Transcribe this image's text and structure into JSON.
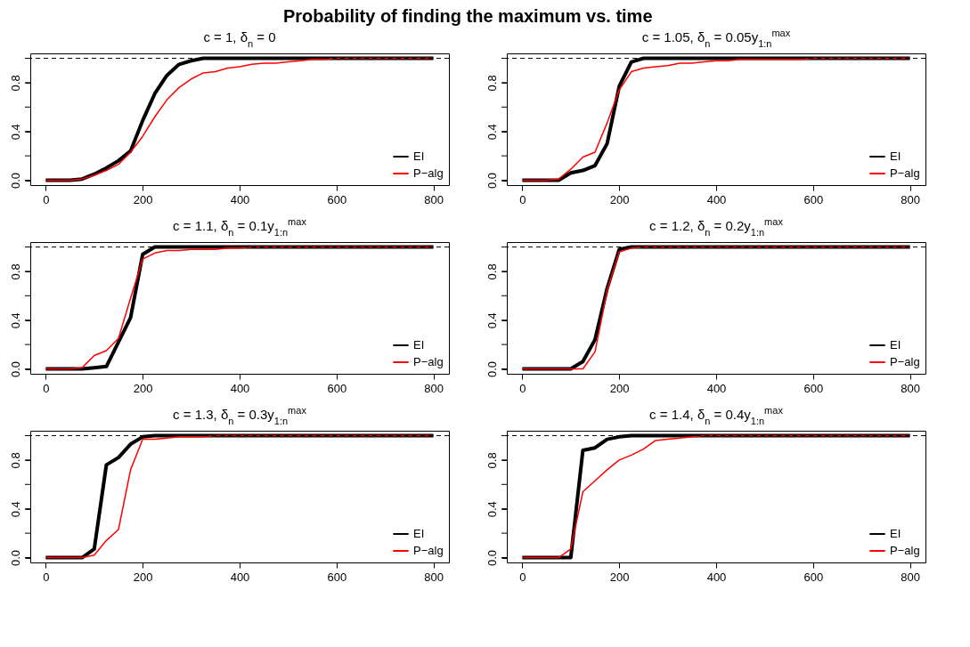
{
  "chart_data": [
    {
      "type": "line",
      "title": "c = 1,  δ$_{n}$ = 0",
      "annotations": [
        "Probability of finding the maximum vs. time"
      ],
      "x": [
        0,
        25,
        50,
        75,
        100,
        125,
        150,
        175,
        200,
        225,
        250,
        275,
        300,
        325,
        350,
        375,
        400,
        425,
        450,
        475,
        500,
        525,
        550,
        575,
        600,
        700,
        800
      ],
      "series": [
        {
          "name": "EI",
          "color": "#000000",
          "values": [
            0,
            0,
            0,
            0.01,
            0.05,
            0.1,
            0.16,
            0.24,
            0.49,
            0.71,
            0.86,
            0.95,
            0.98,
            1,
            1,
            1,
            1,
            1,
            1,
            1,
            1,
            1,
            1,
            1,
            1,
            1,
            1
          ]
        },
        {
          "name": "P−alg",
          "color": "#ff0000",
          "values": [
            0,
            0,
            0,
            0.01,
            0.04,
            0.08,
            0.13,
            0.23,
            0.36,
            0.52,
            0.66,
            0.76,
            0.83,
            0.88,
            0.89,
            0.92,
            0.93,
            0.95,
            0.96,
            0.96,
            0.97,
            0.98,
            0.99,
            0.99,
            1,
            1,
            1
          ]
        }
      ],
      "xlim": [
        -32,
        832
      ],
      "ylim": [
        -0.04,
        1.04
      ],
      "xticks": [
        0,
        200,
        400,
        600,
        800
      ],
      "yticks": [
        {
          "value": 0,
          "label": "0.0"
        },
        {
          "value": 0.2,
          "label": null
        },
        {
          "value": 0.4,
          "label": "0.4"
        },
        {
          "value": 0.6,
          "label": null
        },
        {
          "value": 0.8,
          "label": "0.8"
        },
        {
          "value": 1,
          "label": null
        }
      ],
      "ref_lines": [
        {
          "axis": "y",
          "value": 1,
          "line_style": "dashed",
          "color": "#000000"
        }
      ],
      "legend": "bottom right",
      "grid": false,
      "line_style": "solid"
    },
    {
      "type": "line",
      "title": "c = 1.05, δ$_{n}$ = 0.05y$_{1:n}$$^{max}$",
      "x": [
        0,
        25,
        50,
        75,
        100,
        125,
        150,
        175,
        200,
        225,
        250,
        275,
        300,
        325,
        350,
        375,
        400,
        425,
        450,
        475,
        500,
        525,
        550,
        575,
        600,
        700,
        800
      ],
      "series": [
        {
          "name": "EI",
          "color": "#000000",
          "values": [
            0,
            0,
            0,
            0,
            0.06,
            0.08,
            0.12,
            0.3,
            0.77,
            0.97,
            1,
            1,
            1,
            1,
            1,
            1,
            1,
            1,
            1,
            1,
            1,
            1,
            1,
            1,
            1,
            1,
            1
          ]
        },
        {
          "name": "P−alg",
          "color": "#ff0000",
          "values": [
            0,
            0,
            0,
            0.01,
            0.09,
            0.19,
            0.23,
            0.47,
            0.74,
            0.89,
            0.92,
            0.93,
            0.94,
            0.96,
            0.96,
            0.97,
            0.98,
            0.98,
            0.99,
            0.99,
            0.99,
            0.99,
            0.99,
            0.99,
            1,
            1,
            1
          ]
        }
      ],
      "xlim": [
        -32,
        832
      ],
      "ylim": [
        -0.04,
        1.04
      ],
      "xticks": [
        0,
        200,
        400,
        600,
        800
      ],
      "yticks": [
        {
          "value": 0,
          "label": "0.0"
        },
        {
          "value": 0.2,
          "label": null
        },
        {
          "value": 0.4,
          "label": "0.4"
        },
        {
          "value": 0.6,
          "label": null
        },
        {
          "value": 0.8,
          "label": "0.8"
        },
        {
          "value": 1,
          "label": null
        }
      ],
      "ref_lines": [
        {
          "axis": "y",
          "value": 1,
          "line_style": "dashed",
          "color": "#000000"
        }
      ],
      "legend": "bottom right",
      "grid": false,
      "line_style": "solid"
    },
    {
      "type": "line",
      "title": "c = 1.1, δ$_{n}$ = 0.1y$_{1:n}$$^{max}$",
      "x": [
        0,
        25,
        50,
        75,
        100,
        125,
        150,
        175,
        200,
        225,
        250,
        275,
        300,
        325,
        350,
        375,
        400,
        425,
        450,
        475,
        500,
        525,
        550,
        575,
        600,
        700,
        800
      ],
      "series": [
        {
          "name": "EI",
          "color": "#000000",
          "values": [
            0,
            0,
            0,
            0,
            0.01,
            0.02,
            0.22,
            0.42,
            0.94,
            1,
            1,
            1,
            1,
            1,
            1,
            1,
            1,
            1,
            1,
            1,
            1,
            1,
            1,
            1,
            1,
            1,
            1
          ]
        },
        {
          "name": "P−alg",
          "color": "#ff0000",
          "values": [
            0,
            0,
            0,
            0.01,
            0.11,
            0.15,
            0.25,
            0.58,
            0.9,
            0.95,
            0.97,
            0.97,
            0.98,
            0.98,
            0.98,
            0.99,
            0.99,
            1,
            1,
            1,
            1,
            1,
            1,
            1,
            1,
            1,
            1
          ]
        }
      ],
      "xlim": [
        -32,
        832
      ],
      "ylim": [
        -0.04,
        1.04
      ],
      "xticks": [
        0,
        200,
        400,
        600,
        800
      ],
      "yticks": [
        {
          "value": 0,
          "label": "0.0"
        },
        {
          "value": 0.2,
          "label": null
        },
        {
          "value": 0.4,
          "label": "0.4"
        },
        {
          "value": 0.6,
          "label": null
        },
        {
          "value": 0.8,
          "label": "0.8"
        },
        {
          "value": 1,
          "label": null
        }
      ],
      "ref_lines": [
        {
          "axis": "y",
          "value": 1,
          "line_style": "dashed",
          "color": "#000000"
        }
      ],
      "legend": "bottom right",
      "grid": false,
      "line_style": "solid"
    },
    {
      "type": "line",
      "title": "c = 1.2, δ$_{n}$ = 0.2y$_{1:n}$$^{max}$",
      "x": [
        0,
        25,
        50,
        75,
        100,
        125,
        150,
        175,
        200,
        225,
        250,
        275,
        300,
        325,
        350,
        375,
        400,
        425,
        450,
        475,
        500,
        525,
        550,
        575,
        600,
        700,
        800
      ],
      "series": [
        {
          "name": "EI",
          "color": "#000000",
          "values": [
            0,
            0,
            0,
            0,
            0,
            0.06,
            0.24,
            0.66,
            0.98,
            1,
            1,
            1,
            1,
            1,
            1,
            1,
            1,
            1,
            1,
            1,
            1,
            1,
            1,
            1,
            1,
            1,
            1
          ]
        },
        {
          "name": "P−alg",
          "color": "#ff0000",
          "values": [
            0,
            0,
            0,
            0,
            0,
            0,
            0.14,
            0.64,
            0.96,
            0.99,
            1,
            1,
            1,
            1,
            1,
            1,
            1,
            1,
            1,
            1,
            1,
            1,
            1,
            1,
            1,
            1,
            1
          ]
        }
      ],
      "xlim": [
        -32,
        832
      ],
      "ylim": [
        -0.04,
        1.04
      ],
      "xticks": [
        0,
        200,
        400,
        600,
        800
      ],
      "yticks": [
        {
          "value": 0,
          "label": "0.0"
        },
        {
          "value": 0.2,
          "label": null
        },
        {
          "value": 0.4,
          "label": "0.4"
        },
        {
          "value": 0.6,
          "label": null
        },
        {
          "value": 0.8,
          "label": "0.8"
        },
        {
          "value": 1,
          "label": null
        }
      ],
      "ref_lines": [
        {
          "axis": "y",
          "value": 1,
          "line_style": "dashed",
          "color": "#000000"
        }
      ],
      "legend": "bottom right",
      "grid": false,
      "line_style": "solid"
    },
    {
      "type": "line",
      "title": "c = 1.3, δ$_{n}$ = 0.3y$_{1:n}$$^{max}$",
      "x": [
        0,
        25,
        50,
        75,
        100,
        125,
        150,
        175,
        200,
        225,
        250,
        275,
        300,
        325,
        350,
        375,
        400,
        425,
        450,
        475,
        500,
        525,
        550,
        575,
        600,
        700,
        800
      ],
      "series": [
        {
          "name": "EI",
          "color": "#000000",
          "values": [
            0,
            0,
            0,
            0,
            0.07,
            0.76,
            0.82,
            0.93,
            0.99,
            1,
            1,
            1,
            1,
            1,
            1,
            1,
            1,
            1,
            1,
            1,
            1,
            1,
            1,
            1,
            1,
            1,
            1
          ]
        },
        {
          "name": "P−alg",
          "color": "#ff0000",
          "values": [
            0,
            0,
            0,
            0,
            0.02,
            0.14,
            0.23,
            0.72,
            0.97,
            0.97,
            0.98,
            0.99,
            0.99,
            0.99,
            1,
            1,
            1,
            1,
            1,
            1,
            1,
            1,
            1,
            1,
            1,
            1,
            1
          ]
        }
      ],
      "xlim": [
        -32,
        832
      ],
      "ylim": [
        -0.04,
        1.04
      ],
      "xticks": [
        0,
        200,
        400,
        600,
        800
      ],
      "yticks": [
        {
          "value": 0,
          "label": "0.0"
        },
        {
          "value": 0.2,
          "label": null
        },
        {
          "value": 0.4,
          "label": "0.4"
        },
        {
          "value": 0.6,
          "label": null
        },
        {
          "value": 0.8,
          "label": "0.8"
        },
        {
          "value": 1,
          "label": null
        }
      ],
      "ref_lines": [
        {
          "axis": "y",
          "value": 1,
          "line_style": "dashed",
          "color": "#000000"
        }
      ],
      "legend": "bottom right",
      "grid": false,
      "line_style": "solid"
    },
    {
      "type": "line",
      "title": "c = 1.4, δ$_{n}$ = 0.4y$_{1:n}$$^{max}$",
      "x": [
        0,
        25,
        50,
        75,
        100,
        125,
        150,
        175,
        200,
        225,
        250,
        275,
        300,
        325,
        350,
        375,
        400,
        425,
        450,
        475,
        500,
        525,
        550,
        575,
        600,
        700,
        800
      ],
      "series": [
        {
          "name": "EI",
          "color": "#000000",
          "values": [
            0,
            0,
            0,
            0,
            0,
            0.88,
            0.9,
            0.97,
            0.99,
            1,
            1,
            1,
            1,
            1,
            1,
            1,
            1,
            1,
            1,
            1,
            1,
            1,
            1,
            1,
            1,
            1,
            1
          ]
        },
        {
          "name": "P−alg",
          "color": "#ff0000",
          "values": [
            0,
            0,
            0,
            0,
            0.07,
            0.54,
            0.63,
            0.72,
            0.8,
            0.84,
            0.89,
            0.96,
            0.97,
            0.98,
            0.99,
            1,
            1,
            1,
            1,
            1,
            1,
            1,
            1,
            1,
            1,
            1,
            1
          ]
        }
      ],
      "xlim": [
        -32,
        832
      ],
      "ylim": [
        -0.04,
        1.04
      ],
      "xticks": [
        0,
        200,
        400,
        600,
        800
      ],
      "yticks": [
        {
          "value": 0,
          "label": "0.0"
        },
        {
          "value": 0.2,
          "label": null
        },
        {
          "value": 0.4,
          "label": "0.4"
        },
        {
          "value": 0.6,
          "label": null
        },
        {
          "value": 0.8,
          "label": "0.8"
        },
        {
          "value": 1,
          "label": null
        }
      ],
      "ref_lines": [
        {
          "axis": "y",
          "value": 1,
          "line_style": "dashed",
          "color": "#000000"
        }
      ],
      "legend": "bottom right",
      "grid": false,
      "line_style": "solid"
    }
  ]
}
